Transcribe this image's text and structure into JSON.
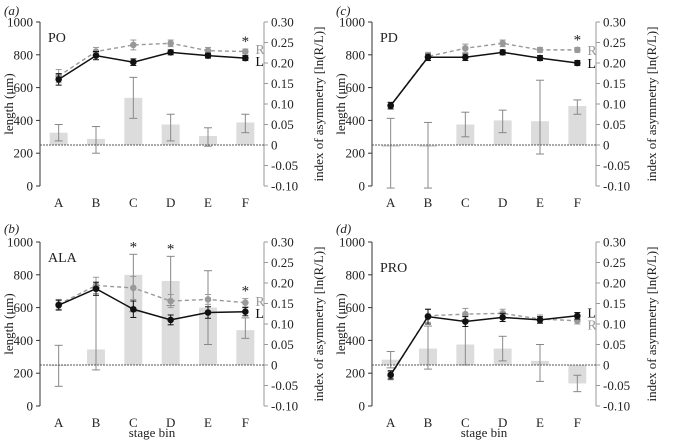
{
  "panels_info": "four panels",
  "chart_data": [
    {
      "type": "bar+line",
      "panel_label": "(a)",
      "title": "PO",
      "categories": [
        "A",
        "B",
        "C",
        "D",
        "E",
        "F"
      ],
      "xlabel": "",
      "ylabel": "length (μm)",
      "y2label": "index of asymmetry [ln(R/L)]",
      "ylim": [
        0,
        1000
      ],
      "y2lim": [
        -0.1,
        0.3
      ],
      "y_ticks": [
        "0",
        "200",
        "400",
        "600",
        "800",
        "1000"
      ],
      "y2_ticks": [
        "0.30",
        "0.25",
        "0.20",
        "0.15",
        "0.10",
        "0.05",
        "0",
        "-0.05",
        "-0.10"
      ],
      "bars": {
        "values": [
          0.03,
          0.015,
          0.115,
          0.05,
          0.022,
          0.055
        ],
        "err_lo": [
          0.02,
          0.035,
          0.05,
          0.04,
          0.025,
          0.025
        ],
        "err_hi": [
          0.02,
          0.03,
          0.05,
          0.025,
          0.02,
          0.02
        ]
      },
      "series": [
        {
          "name": "R",
          "values": [
            670,
            820,
            860,
            870,
            825,
            820
          ],
          "err": [
            40,
            25,
            30,
            20,
            20,
            15
          ],
          "dashed": true,
          "color": "#999999"
        },
        {
          "name": "L",
          "values": [
            650,
            795,
            755,
            815,
            795,
            780
          ],
          "err": [
            35,
            25,
            20,
            15,
            15,
            15
          ],
          "dashed": false,
          "color": "#111111"
        }
      ],
      "stars": [
        "",
        "",
        "",
        "",
        "",
        "*"
      ],
      "end_labels": [
        "R",
        "L"
      ]
    },
    {
      "type": "bar+line",
      "panel_label": "(c)",
      "title": "PD",
      "categories": [
        "A",
        "B",
        "C",
        "D",
        "E",
        "F"
      ],
      "xlabel": "",
      "ylabel": "length (μm)",
      "y2label": "index of asymmetry [ln(R/L)]",
      "ylim": [
        0,
        1000
      ],
      "y2lim": [
        -0.1,
        0.3
      ],
      "y_ticks": [
        "0",
        "200",
        "400",
        "600",
        "800",
        "1000"
      ],
      "y2_ticks": [
        "0.30",
        "0.25",
        "0.20",
        "0.15",
        "0.10",
        "0.05",
        "0",
        "-0.05",
        "-0.10"
      ],
      "bars": {
        "values": [
          -0.005,
          -0.005,
          0.05,
          0.06,
          0.058,
          0.095
        ],
        "err_lo": [
          0.1,
          0.1,
          0.03,
          0.03,
          0.08,
          0.02
        ],
        "err_hi": [
          0.07,
          0.06,
          0.03,
          0.025,
          0.1,
          0.015
        ]
      },
      "series": [
        {
          "name": "R",
          "values": [
            490,
            790,
            840,
            870,
            830,
            830
          ],
          "err": [
            20,
            25,
            25,
            20,
            15,
            15
          ],
          "dashed": true,
          "color": "#999999"
        },
        {
          "name": "L",
          "values": [
            490,
            785,
            785,
            815,
            780,
            750
          ],
          "err": [
            20,
            20,
            20,
            15,
            15,
            15
          ],
          "dashed": false,
          "color": "#111111"
        }
      ],
      "stars": [
        "",
        "",
        "",
        "",
        "",
        "*"
      ],
      "end_labels": [
        "R",
        "L"
      ]
    },
    {
      "type": "bar+line",
      "panel_label": "(b)",
      "title": "ALA",
      "categories": [
        "A",
        "B",
        "C",
        "D",
        "E",
        "F"
      ],
      "xlabel": "stage bin",
      "ylabel": "length (μm)",
      "y2label": "index of asymmetry [ln(R/L)]",
      "ylim": [
        0,
        1000
      ],
      "y2lim": [
        -0.1,
        0.3
      ],
      "y2_ticks": [
        "0.30",
        "0.25",
        "0.20",
        "0.15",
        "0.10",
        "0.05",
        "0",
        "-0.05",
        "-0.10"
      ],
      "y_ticks": [
        "0",
        "200",
        "400",
        "600",
        "800",
        "1000"
      ],
      "bars": {
        "values": [
          -0.002,
          0.038,
          0.22,
          0.205,
          0.14,
          0.085
        ],
        "err_lo": [
          0.05,
          0.05,
          0.09,
          0.06,
          0.09,
          0.02
        ],
        "err_hi": [
          0.05,
          0.15,
          0.05,
          0.06,
          0.09,
          0.03
        ]
      },
      "series": [
        {
          "name": "R",
          "values": [
            620,
            735,
            720,
            640,
            650,
            630
          ],
          "err": [
            30,
            50,
            70,
            40,
            30,
            25
          ],
          "dashed": true,
          "color": "#999999"
        },
        {
          "name": "L",
          "values": [
            615,
            715,
            590,
            525,
            570,
            575
          ],
          "err": [
            30,
            40,
            50,
            30,
            35,
            25
          ],
          "dashed": false,
          "color": "#111111"
        }
      ],
      "stars": [
        "",
        "",
        "*",
        "*",
        "",
        "*"
      ],
      "end_labels": [
        "R",
        "L"
      ]
    },
    {
      "type": "bar+line",
      "panel_label": "(d)",
      "title": "PRO",
      "categories": [
        "A",
        "B",
        "C",
        "D",
        "E",
        "F"
      ],
      "xlabel": "stage bin",
      "ylabel": "length (μm)",
      "y2label": "index of asymmetry [ln(R/L)]",
      "ylim": [
        0,
        1000
      ],
      "y2lim": [
        -0.1,
        0.3
      ],
      "y2_ticks": [
        "0.30",
        "0.25",
        "0.20",
        "0.15",
        "0.10",
        "0.05",
        "0",
        "-0.05",
        "-0.10"
      ],
      "y_ticks": [
        "0",
        "200",
        "400",
        "600",
        "800",
        "1000"
      ],
      "bars": {
        "values": [
          0.013,
          0.04,
          0.05,
          0.04,
          0.01,
          -0.045
        ],
        "err_lo": [
          0.02,
          0.05,
          0.05,
          0.03,
          0.05,
          0.02
        ],
        "err_hi": [
          0.02,
          0.055,
          0.06,
          0.03,
          0.04,
          0.02
        ]
      },
      "series": [
        {
          "name": "R",
          "values": [
            185,
            550,
            560,
            565,
            530,
            520
          ],
          "err": [
            25,
            40,
            35,
            25,
            25,
            20
          ],
          "dashed": true,
          "color": "#999999"
        },
        {
          "name": "L",
          "values": [
            190,
            545,
            515,
            540,
            525,
            550
          ],
          "err": [
            25,
            45,
            30,
            25,
            20,
            20
          ],
          "dashed": false,
          "color": "#111111"
        }
      ],
      "stars": [
        "",
        "",
        "",
        "",
        "",
        ""
      ],
      "end_labels": [
        "L",
        "R"
      ]
    }
  ]
}
